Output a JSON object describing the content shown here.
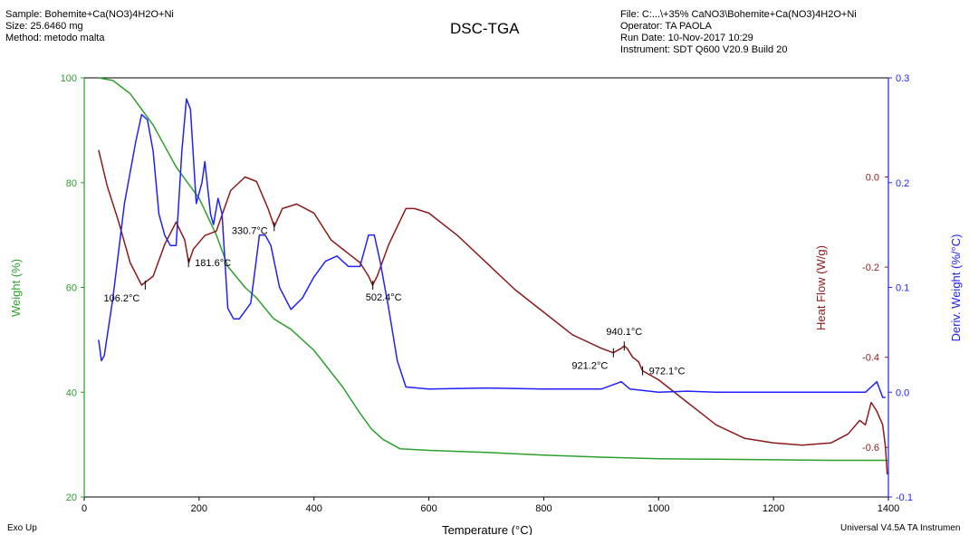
{
  "header": {
    "sample": "Sample: Bohemite+Ca(NO3)4H2O+Ni",
    "size": "Size:  25.6460 mg",
    "method": "Method: metodo malta",
    "file": "File: C:...\\+35% CaNO3\\Bohemite+Ca(NO3)4H2O+Ni",
    "operator": "Operator: TA PAOLA",
    "run_date": "Run Date: 10-Nov-2017 10:29",
    "instrument": "Instrument: SDT Q600 V20.9 Build 20"
  },
  "footer": {
    "exo_up": "Exo Up",
    "software": "Universal V4.5A TA Instrumen"
  },
  "colors": {
    "weight": "#2ca02c",
    "heat_flow": "#8b1a1a",
    "deriv": "#2020ff"
  },
  "chart_data": {
    "type": "line",
    "title": "DSC-TGA",
    "xlabel": "Temperature (°C)",
    "xlim": [
      0,
      1400
    ],
    "x_ticks": [
      0,
      200,
      400,
      600,
      800,
      1000,
      1200,
      1400
    ],
    "axes": {
      "weight": {
        "label": "Weight (%)",
        "lim": [
          20,
          100
        ],
        "ticks": [
          20,
          40,
          60,
          80,
          100
        ]
      },
      "heat_flow": {
        "label": "Heat Flow (W/g)",
        "lim": [
          -0.71,
          0.22
        ],
        "ticks": [
          0.0,
          -0.2,
          -0.4,
          -0.6
        ]
      },
      "deriv": {
        "label": "Deriv. Weight (%/°C)",
        "lim": [
          -0.1,
          0.3
        ],
        "ticks": [
          -0.1,
          0.0,
          0.1,
          0.2,
          0.3
        ]
      }
    },
    "series": [
      {
        "axis": "weight",
        "points": [
          [
            25,
            100
          ],
          [
            50,
            99.5
          ],
          [
            80,
            97
          ],
          [
            100,
            94
          ],
          [
            120,
            91
          ],
          [
            140,
            87
          ],
          [
            160,
            83
          ],
          [
            180,
            80
          ],
          [
            200,
            77
          ],
          [
            230,
            70
          ],
          [
            250,
            64
          ],
          [
            280,
            60
          ],
          [
            300,
            58
          ],
          [
            330,
            54
          ],
          [
            360,
            52
          ],
          [
            400,
            48
          ],
          [
            450,
            41
          ],
          [
            480,
            36
          ],
          [
            500,
            33
          ],
          [
            520,
            31
          ],
          [
            550,
            29.2
          ],
          [
            600,
            28.9
          ],
          [
            700,
            28.5
          ],
          [
            800,
            28
          ],
          [
            900,
            27.6
          ],
          [
            1000,
            27.3
          ],
          [
            1100,
            27.2
          ],
          [
            1200,
            27.1
          ],
          [
            1300,
            27
          ],
          [
            1400,
            27
          ]
        ]
      },
      {
        "axis": "heat_flow",
        "points": [
          [
            25,
            0.06
          ],
          [
            40,
            -0.02
          ],
          [
            60,
            -0.1
          ],
          [
            80,
            -0.19
          ],
          [
            100,
            -0.24
          ],
          [
            120,
            -0.22
          ],
          [
            140,
            -0.15
          ],
          [
            160,
            -0.1
          ],
          [
            175,
            -0.14
          ],
          [
            182,
            -0.19
          ],
          [
            190,
            -0.16
          ],
          [
            210,
            -0.13
          ],
          [
            230,
            -0.12
          ],
          [
            255,
            -0.03
          ],
          [
            280,
            0.0
          ],
          [
            300,
            -0.01
          ],
          [
            320,
            -0.07
          ],
          [
            331,
            -0.11
          ],
          [
            345,
            -0.07
          ],
          [
            370,
            -0.06
          ],
          [
            400,
            -0.08
          ],
          [
            430,
            -0.14
          ],
          [
            460,
            -0.17
          ],
          [
            480,
            -0.19
          ],
          [
            495,
            -0.22
          ],
          [
            502,
            -0.24
          ],
          [
            510,
            -0.22
          ],
          [
            530,
            -0.15
          ],
          [
            560,
            -0.07
          ],
          [
            575,
            -0.07
          ],
          [
            600,
            -0.08
          ],
          [
            650,
            -0.13
          ],
          [
            700,
            -0.19
          ],
          [
            750,
            -0.25
          ],
          [
            800,
            -0.3
          ],
          [
            850,
            -0.35
          ],
          [
            900,
            -0.38
          ],
          [
            921,
            -0.39
          ],
          [
            935,
            -0.38
          ],
          [
            940,
            -0.375
          ],
          [
            945,
            -0.38
          ],
          [
            955,
            -0.4
          ],
          [
            965,
            -0.41
          ],
          [
            972,
            -0.43
          ],
          [
            1000,
            -0.45
          ],
          [
            1050,
            -0.5
          ],
          [
            1100,
            -0.55
          ],
          [
            1150,
            -0.58
          ],
          [
            1200,
            -0.59
          ],
          [
            1250,
            -0.595
          ],
          [
            1300,
            -0.59
          ],
          [
            1330,
            -0.57
          ],
          [
            1350,
            -0.54
          ],
          [
            1360,
            -0.55
          ],
          [
            1370,
            -0.5
          ],
          [
            1380,
            -0.52
          ],
          [
            1390,
            -0.55
          ],
          [
            1395,
            -0.6
          ],
          [
            1398,
            -0.66
          ]
        ]
      },
      {
        "axis": "deriv",
        "points": [
          [
            25,
            0.05
          ],
          [
            30,
            0.03
          ],
          [
            35,
            0.035
          ],
          [
            50,
            0.09
          ],
          [
            70,
            0.18
          ],
          [
            90,
            0.24
          ],
          [
            100,
            0.265
          ],
          [
            110,
            0.26
          ],
          [
            120,
            0.23
          ],
          [
            130,
            0.17
          ],
          [
            140,
            0.15
          ],
          [
            150,
            0.14
          ],
          [
            160,
            0.14
          ],
          [
            170,
            0.23
          ],
          [
            178,
            0.28
          ],
          [
            185,
            0.27
          ],
          [
            195,
            0.18
          ],
          [
            205,
            0.2
          ],
          [
            210,
            0.22
          ],
          [
            220,
            0.17
          ],
          [
            225,
            0.16
          ],
          [
            233,
            0.185
          ],
          [
            240,
            0.17
          ],
          [
            250,
            0.08
          ],
          [
            260,
            0.07
          ],
          [
            270,
            0.07
          ],
          [
            290,
            0.085
          ],
          [
            305,
            0.15
          ],
          [
            315,
            0.15
          ],
          [
            325,
            0.14
          ],
          [
            340,
            0.1
          ],
          [
            360,
            0.079
          ],
          [
            380,
            0.09
          ],
          [
            400,
            0.11
          ],
          [
            420,
            0.125
          ],
          [
            440,
            0.13
          ],
          [
            460,
            0.12
          ],
          [
            480,
            0.12
          ],
          [
            495,
            0.15
          ],
          [
            505,
            0.15
          ],
          [
            515,
            0.125
          ],
          [
            530,
            0.08
          ],
          [
            545,
            0.03
          ],
          [
            560,
            0.005
          ],
          [
            600,
            0.003
          ],
          [
            700,
            0.004
          ],
          [
            800,
            0.003
          ],
          [
            900,
            0.003
          ],
          [
            935,
            0.01
          ],
          [
            950,
            0.003
          ],
          [
            1000,
            0.0
          ],
          [
            1050,
            0.001
          ],
          [
            1100,
            0.0
          ],
          [
            1200,
            0.0
          ],
          [
            1300,
            0.0
          ],
          [
            1360,
            0.0
          ],
          [
            1380,
            0.01
          ],
          [
            1390,
            -0.005
          ],
          [
            1395,
            -0.005
          ]
        ]
      }
    ],
    "annotations": [
      {
        "axis": "heat_flow",
        "x": 106.2,
        "y": -0.24,
        "label": "106.2°C",
        "anchor": "below-left"
      },
      {
        "axis": "heat_flow",
        "x": 181.6,
        "y": -0.19,
        "label": "181.6°C",
        "anchor": "right"
      },
      {
        "axis": "heat_flow",
        "x": 330.7,
        "y": -0.11,
        "label": "330.7°C",
        "anchor": "left"
      },
      {
        "axis": "heat_flow",
        "x": 502.4,
        "y": -0.24,
        "label": "502.4°C",
        "anchor": "below"
      },
      {
        "axis": "heat_flow",
        "x": 921.2,
        "y": -0.39,
        "label": "921.2°C",
        "anchor": "below-left"
      },
      {
        "axis": "heat_flow",
        "x": 940.1,
        "y": -0.375,
        "label": "940.1°C",
        "anchor": "above"
      },
      {
        "axis": "heat_flow",
        "x": 972.1,
        "y": -0.43,
        "label": "972.1°C",
        "anchor": "right"
      }
    ]
  }
}
